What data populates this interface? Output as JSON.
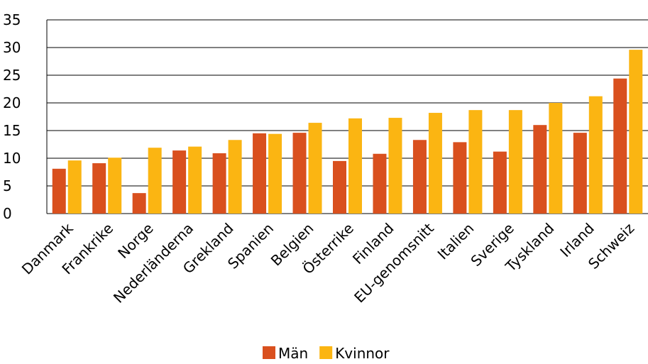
{
  "chart_data": {
    "type": "bar",
    "categories": [
      "Danmark",
      "Frankrike",
      "Norge",
      "Nederländerna",
      "Grekland",
      "Spanien",
      "Belgien",
      "Österrike",
      "Finland",
      "EU-genomsnitt",
      "Italien",
      "Sverige",
      "Tyskland",
      "Irland",
      "Schweiz"
    ],
    "series": [
      {
        "name": "Män",
        "color": "#d9501e",
        "values": [
          8.1,
          9.1,
          3.7,
          11.4,
          10.9,
          14.5,
          14.6,
          9.5,
          10.8,
          13.3,
          12.9,
          11.2,
          16.0,
          14.6,
          24.4
        ]
      },
      {
        "name": "Kvinnor",
        "color": "#fbb512",
        "values": [
          9.6,
          10.1,
          11.9,
          12.1,
          13.3,
          14.4,
          16.4,
          17.2,
          17.3,
          18.2,
          18.7,
          18.7,
          20.0,
          21.2,
          29.6
        ]
      }
    ],
    "ylim": [
      0,
      35
    ],
    "yticks": [
      0,
      5,
      10,
      15,
      20,
      25,
      30,
      35
    ],
    "grid": true,
    "legend": "bottom"
  }
}
